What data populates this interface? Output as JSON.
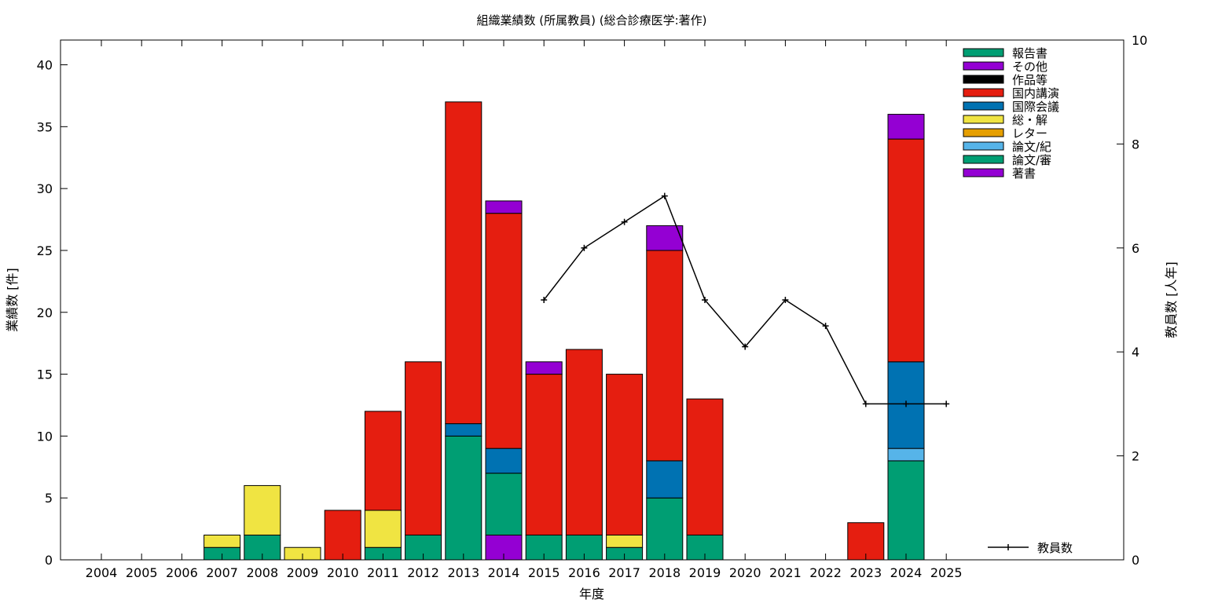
{
  "chart_data": {
    "type": "bar",
    "title": "組織業績数 (所属教員) (総合診療医学:著作)",
    "xlabel": "年度",
    "ylabel": "業績数 [件]",
    "y2label": "教員数 [人年]",
    "ylim": [
      0,
      42
    ],
    "y2lim": [
      0,
      10
    ],
    "yticks": [
      0,
      5,
      10,
      15,
      20,
      25,
      30,
      35,
      40
    ],
    "y2ticks": [
      0,
      2,
      4,
      6,
      8,
      10
    ],
    "categories": [
      "2004",
      "2005",
      "2006",
      "2007",
      "2008",
      "2009",
      "2010",
      "2011",
      "2012",
      "2013",
      "2014",
      "2015",
      "2016",
      "2017",
      "2018",
      "2019",
      "2020",
      "2021",
      "2022",
      "2023",
      "2024",
      "2025"
    ],
    "series": [
      {
        "name": "著書",
        "color": "#9400d3",
        "values": [
          0,
          0,
          0,
          0,
          0,
          0,
          0,
          0,
          0,
          0,
          2,
          0,
          0,
          0,
          0,
          0,
          0,
          0,
          0,
          0,
          0,
          0
        ]
      },
      {
        "name": "論文/審",
        "color": "#009e73",
        "values": [
          0,
          0,
          0,
          1,
          2,
          0,
          0,
          1,
          2,
          10,
          5,
          2,
          2,
          1,
          5,
          2,
          0,
          0,
          0,
          0,
          8,
          0
        ]
      },
      {
        "name": "論文/紀",
        "color": "#56b4e9",
        "values": [
          0,
          0,
          0,
          0,
          0,
          0,
          0,
          0,
          0,
          0,
          0,
          0,
          0,
          0,
          0,
          0,
          0,
          0,
          0,
          0,
          1,
          0
        ]
      },
      {
        "name": "レター",
        "color": "#e69f00",
        "values": [
          0,
          0,
          0,
          0,
          0,
          0,
          0,
          0,
          0,
          0,
          0,
          0,
          0,
          0,
          0,
          0,
          0,
          0,
          0,
          0,
          0,
          0
        ]
      },
      {
        "name": "総・解",
        "color": "#f0e442",
        "values": [
          0,
          0,
          0,
          1,
          4,
          1,
          0,
          3,
          0,
          0,
          0,
          0,
          0,
          1,
          0,
          0,
          0,
          0,
          0,
          0,
          0,
          0
        ]
      },
      {
        "name": "国際会議",
        "color": "#0072b2",
        "values": [
          0,
          0,
          0,
          0,
          0,
          0,
          0,
          0,
          0,
          1,
          2,
          0,
          0,
          0,
          3,
          0,
          0,
          0,
          0,
          0,
          7,
          0
        ]
      },
      {
        "name": "国内講演",
        "color": "#e51e10",
        "values": [
          0,
          0,
          0,
          0,
          0,
          0,
          4,
          8,
          14,
          26,
          19,
          13,
          15,
          13,
          17,
          11,
          0,
          0,
          0,
          3,
          18,
          0
        ]
      },
      {
        "name": "作品等",
        "color": "#000000",
        "values": [
          0,
          0,
          0,
          0,
          0,
          0,
          0,
          0,
          0,
          0,
          0,
          0,
          0,
          0,
          0,
          0,
          0,
          0,
          0,
          0,
          0,
          0
        ]
      },
      {
        "name": "その他",
        "color": "#9400d3",
        "values": [
          0,
          0,
          0,
          0,
          0,
          0,
          0,
          0,
          0,
          0,
          1,
          1,
          0,
          0,
          2,
          0,
          0,
          0,
          0,
          0,
          2,
          0
        ]
      },
      {
        "name": "報告書",
        "color": "#009e73",
        "values": [
          0,
          0,
          0,
          0,
          0,
          0,
          0,
          0,
          0,
          0,
          0,
          0,
          0,
          0,
          0,
          0,
          0,
          0,
          0,
          0,
          0,
          0
        ]
      }
    ],
    "legend_order": [
      "報告書",
      "その他",
      "作品等",
      "国内講演",
      "国際会議",
      "総・解",
      "レター",
      "論文/紀",
      "論文/審",
      "著書"
    ],
    "line": {
      "name": "教員数",
      "axis": "right",
      "x": [
        "2015",
        "2016",
        "2017",
        "2018",
        "2019",
        "2020",
        "2021",
        "2022",
        "2023",
        "2024",
        "2025"
      ],
      "values": [
        5,
        6,
        6.5,
        7,
        5,
        4.1,
        5,
        4.5,
        3,
        3,
        3
      ]
    },
    "legend_position": "top-right"
  }
}
